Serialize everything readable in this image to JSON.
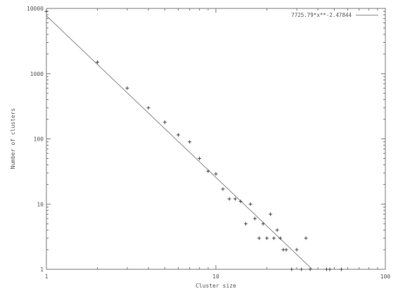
{
  "chart_data": {
    "type": "scatter",
    "title": "",
    "xlabel": "Cluster size",
    "ylabel": "Number of clusters",
    "x_scale": "log",
    "y_scale": "log",
    "xlim": [
      1,
      100
    ],
    "ylim": [
      1,
      10000
    ],
    "x_ticks": [
      {
        "value": 1,
        "label": "1"
      },
      {
        "value": 10,
        "label": "10"
      },
      {
        "value": 100,
        "label": "100"
      }
    ],
    "y_ticks": [
      {
        "value": 1,
        "label": "1"
      },
      {
        "value": 10,
        "label": "10"
      },
      {
        "value": 100,
        "label": "100"
      },
      {
        "value": 1000,
        "label": "1000"
      },
      {
        "value": 10000,
        "label": "10000"
      }
    ],
    "grid": false,
    "legend_position": "top-right",
    "series": [
      {
        "kind": "points",
        "marker": "+",
        "x": [
          1,
          2,
          3,
          4,
          5,
          6,
          7,
          8,
          9,
          10,
          11,
          12,
          13,
          14,
          15,
          16,
          17,
          18,
          19,
          20,
          21,
          22,
          23,
          24,
          25,
          26,
          28,
          30,
          32,
          34,
          36,
          45,
          47,
          55
        ],
        "y": [
          9000,
          1500,
          600,
          300,
          180,
          115,
          90,
          50,
          32,
          29,
          17,
          12,
          12,
          11,
          5,
          10,
          6,
          3,
          5,
          3,
          7,
          3,
          4,
          3,
          2,
          2,
          1,
          2,
          1,
          3,
          1,
          1,
          1,
          1
        ]
      },
      {
        "kind": "fit",
        "name": "7725.79*x**-2.47844",
        "coefficient": 7725.79,
        "exponent": -2.47844,
        "color": "#8a8a8a"
      }
    ]
  }
}
